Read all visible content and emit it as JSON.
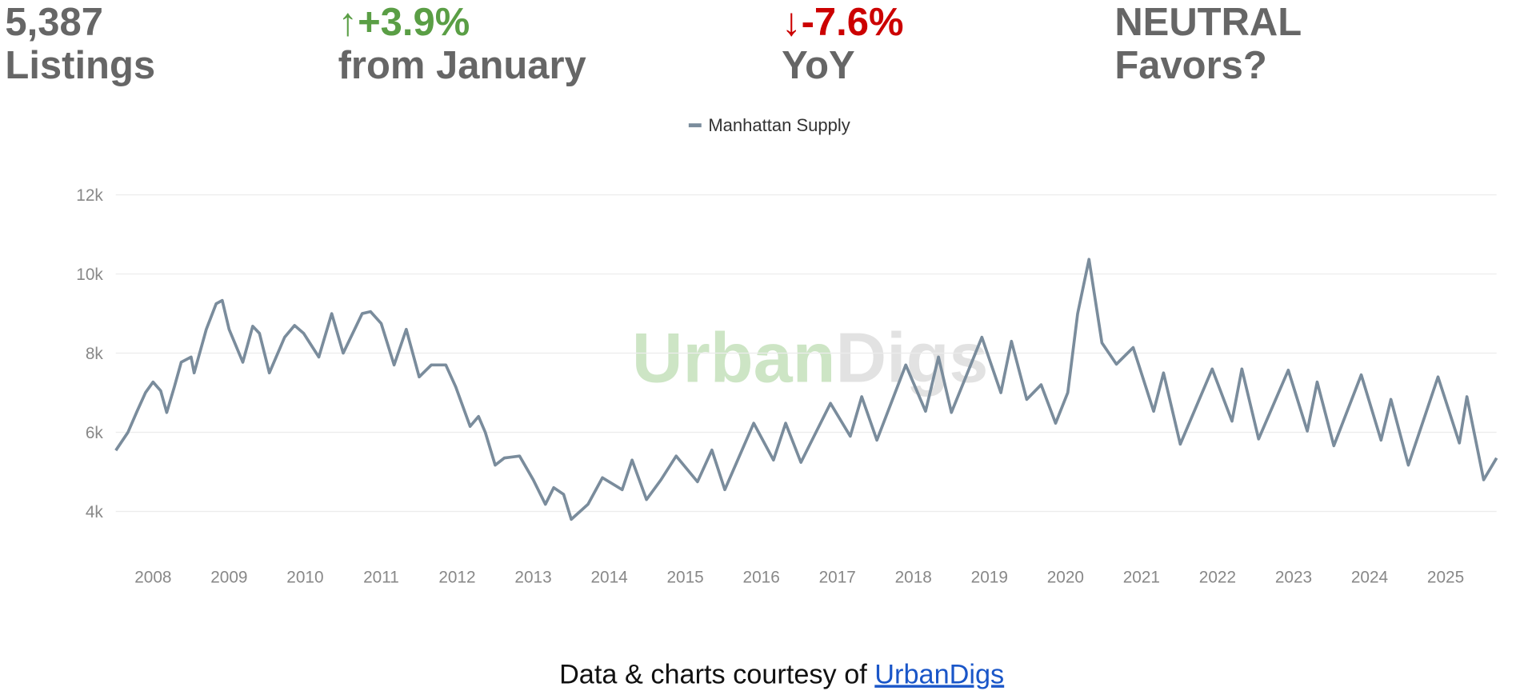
{
  "stats": [
    {
      "value": "5,387",
      "label": "Listings",
      "color": "#666666"
    },
    {
      "value": "↑+3.9%",
      "label": "from January",
      "color": "#5a9e45"
    },
    {
      "value": "↓-7.6%",
      "label": "YoY",
      "color": "#cc0000"
    },
    {
      "value": "NEUTRAL",
      "label": "Favors?",
      "color": "#666666"
    }
  ],
  "watermark": [
    "Urban",
    "Digs"
  ],
  "chart_data": {
    "type": "line",
    "x": [
      2007.51,
      2007.67,
      2007.79,
      2007.9,
      2008.0,
      2008.1,
      2008.18,
      2008.28,
      2008.37,
      2008.5,
      2008.54,
      2008.7,
      2008.83,
      2008.91,
      2009.0,
      2009.18,
      2009.31,
      2009.4,
      2009.53,
      2009.73,
      2009.86,
      2009.98,
      2010.18,
      2010.35,
      2010.5,
      2010.75,
      2010.86,
      2011.0,
      2011.17,
      2011.33,
      2011.5,
      2011.66,
      2011.85,
      2011.98,
      2012.17,
      2012.28,
      2012.37,
      2012.5,
      2012.62,
      2012.82,
      2013.0,
      2013.16,
      2013.27,
      2013.4,
      2013.5,
      2013.72,
      2013.91,
      2014.17,
      2014.3,
      2014.49,
      2014.68,
      2014.88,
      2015.16,
      2015.35,
      2015.52,
      2015.9,
      2016.16,
      2016.32,
      2016.52,
      2016.91,
      2017.17,
      2017.32,
      2017.52,
      2017.9,
      2018.16,
      2018.33,
      2018.5,
      2018.9,
      2019.15,
      2019.29,
      2019.49,
      2019.68,
      2019.87,
      2020.03,
      2020.16,
      2020.31,
      2020.48,
      2020.67,
      2020.89,
      2021.16,
      2021.29,
      2021.51,
      2021.93,
      2022.19,
      2022.32,
      2022.54,
      2022.93,
      2023.18,
      2023.31,
      2023.53,
      2023.89,
      2024.15,
      2024.28,
      2024.51,
      2024.9,
      2025.18,
      2025.28,
      2025.5,
      2025.67
    ],
    "series": [
      {
        "name": "Manhattan Supply",
        "color": "#7a8c9c",
        "values": [
          5540,
          6000,
          6530,
          7000,
          7270,
          7050,
          6500,
          7150,
          7770,
          7900,
          7500,
          8600,
          9250,
          9330,
          8600,
          7770,
          8680,
          8500,
          7500,
          8400,
          8700,
          8500,
          7900,
          9000,
          8000,
          9000,
          9050,
          8750,
          7700,
          8600,
          7400,
          7700,
          7700,
          7150,
          6150,
          6400,
          6000,
          5170,
          5350,
          5400,
          4800,
          4180,
          4600,
          4430,
          3800,
          4180,
          4850,
          4550,
          5300,
          4300,
          4800,
          5400,
          4750,
          5550,
          4550,
          6230,
          5300,
          6230,
          5240,
          6730,
          5900,
          6900,
          5800,
          7700,
          6530,
          7900,
          6500,
          8400,
          7000,
          8300,
          6830,
          7200,
          6230,
          7000,
          9000,
          10370,
          8260,
          7720,
          8140,
          6530,
          7500,
          5700,
          7600,
          6280,
          7600,
          5830,
          7570,
          6030,
          7270,
          5660,
          7450,
          5800,
          6830,
          5170,
          7400,
          5730,
          6900,
          4800,
          5350
        ]
      }
    ],
    "xlim": [
      2007.51,
      2025.67
    ],
    "xticks": [
      2008,
      2009,
      2010,
      2011,
      2012,
      2013,
      2014,
      2015,
      2016,
      2017,
      2018,
      2019,
      2020,
      2021,
      2022,
      2023,
      2024,
      2025
    ],
    "ylim": [
      3070,
      12000
    ],
    "yticks": [
      {
        "value": 4000,
        "label": "4k"
      },
      {
        "value": 6000,
        "label": "6k"
      },
      {
        "value": 8000,
        "label": "8k"
      },
      {
        "value": 10000,
        "label": "10k"
      },
      {
        "value": 12000,
        "label": "12k"
      }
    ],
    "grid": true
  },
  "footer": {
    "text": "Data & charts courtesy of ",
    "link": "UrbanDigs"
  }
}
